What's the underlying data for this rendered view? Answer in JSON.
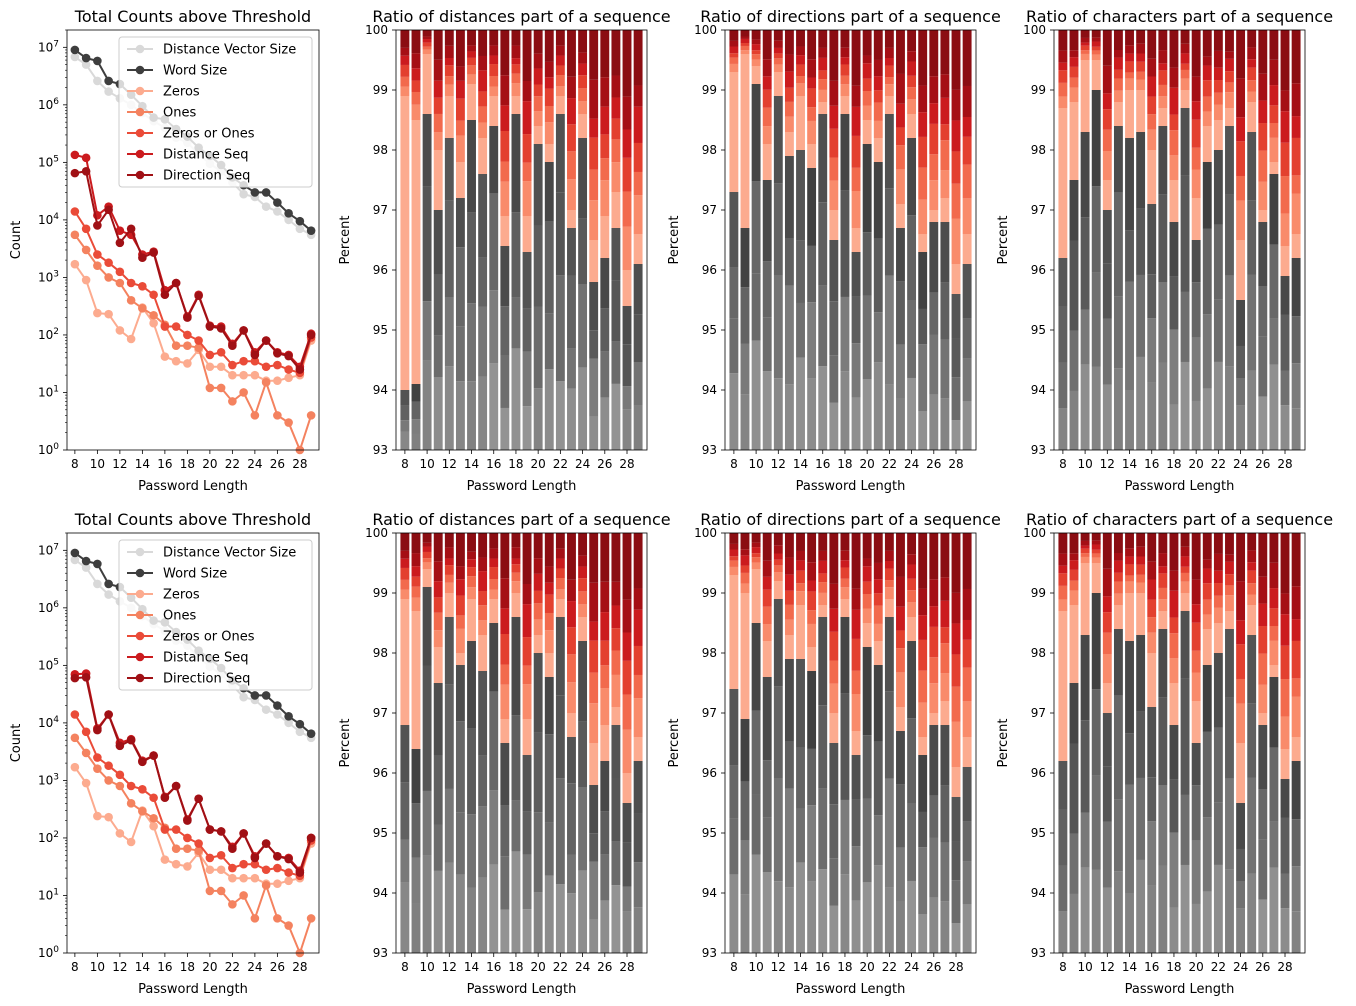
{
  "chart_data": [
    {
      "type": "line",
      "title": "Total Counts above Threshold",
      "xlabel": "Password Length",
      "ylabel": "Count",
      "yscale": "log",
      "ylim": [
        1,
        20000000
      ],
      "xlim": [
        7.3,
        29.7
      ],
      "xticks": [
        8,
        10,
        12,
        14,
        16,
        18,
        20,
        22,
        24,
        26,
        28
      ],
      "yticks": [
        {
          "v": 1,
          "base": "10",
          "exp": "0"
        },
        {
          "v": 10,
          "base": "10",
          "exp": "1"
        },
        {
          "v": 100,
          "base": "10",
          "exp": "2"
        },
        {
          "v": 1000,
          "base": "10",
          "exp": "3"
        },
        {
          "v": 10000,
          "base": "10",
          "exp": "4"
        },
        {
          "v": 100000,
          "base": "10",
          "exp": "5"
        },
        {
          "v": 1000000,
          "base": "10",
          "exp": "6"
        },
        {
          "v": 10000000,
          "base": "10",
          "exp": "7"
        }
      ],
      "legend": "top-right",
      "x": [
        8,
        9,
        10,
        11,
        12,
        13,
        14,
        15,
        16,
        17,
        18,
        19,
        20,
        21,
        22,
        23,
        24,
        25,
        26,
        27,
        28,
        29
      ],
      "series": [
        {
          "name": "Distance Vector Size",
          "color": "#d9d9d9",
          "values": [
            6800000,
            5000000,
            2600000,
            1700000,
            1300000,
            1000000,
            720000,
            520000,
            400000,
            270000,
            220000,
            140000,
            95000,
            70000,
            45000,
            28000,
            25000,
            17000,
            14000,
            10000,
            7000,
            5500
          ]
        },
        {
          "name": "Word Size",
          "color": "#3e3e3e",
          "values": [
            9000000,
            6500000,
            5800000,
            2600000,
            2300000,
            1500000,
            950000,
            600000,
            560000,
            380000,
            280000,
            180000,
            130000,
            90000,
            55000,
            40000,
            30000,
            30000,
            20000,
            13000,
            9500,
            6500
          ]
        },
        {
          "name": "Zeros",
          "color": "#fcab8f",
          "values": [
            1700,
            900,
            240,
            230,
            120,
            85,
            300,
            160,
            42,
            35,
            32,
            55,
            28,
            28,
            20,
            20,
            20,
            16,
            16,
            18,
            20,
            80
          ]
        },
        {
          "name": "Ones",
          "color": "#f4825f",
          "values": [
            5500,
            3000,
            1600,
            1000,
            800,
            400,
            290,
            220,
            150,
            65,
            65,
            60,
            12,
            12,
            7,
            10,
            4,
            15,
            4,
            3,
            1,
            4
          ]
        },
        {
          "name": "Zeros or Ones",
          "color": "#ea4b38",
          "values": [
            14000,
            7000,
            2500,
            1800,
            1250,
            800,
            700,
            500,
            140,
            140,
            100,
            80,
            45,
            50,
            30,
            35,
            35,
            28,
            30,
            25,
            22,
            90
          ]
        }
      ],
      "variants": [
        {
          "distance_seq": {
            "name": "Distance Seq",
            "color": "#cb1b1e",
            "values": [
              135000,
              120000,
              12000,
              17000,
              6500,
              5500,
              2500,
              2800,
              600,
              800,
              210,
              500,
              145,
              140,
              70,
              120,
              50,
              80,
              50,
              45,
              28,
              105
            ]
          },
          "direction_seq": {
            "name": "Direction Seq",
            "color": "#a01015",
            "values": [
              65000,
              70000,
              8000,
              15000,
              4000,
              7000,
              2200,
              2700,
              500,
              800,
              200,
              480,
              140,
              130,
              65,
              120,
              45,
              80,
              48,
              43,
              25,
              100
            ]
          }
        },
        {
          "distance_seq": {
            "name": "Distance Seq",
            "color": "#cb1b1e",
            "values": [
              70000,
              72000,
              8000,
              14000,
              4500,
              5200,
              2200,
              2700,
              520,
              800,
              210,
              480,
              140,
              130,
              70,
              120,
              48,
              80,
              48,
              45,
              27,
              100
            ]
          },
          "direction_seq": {
            "name": "Direction Seq",
            "color": "#a01015",
            "values": [
              60000,
              62000,
              7500,
              14000,
              4000,
              5000,
              2100,
              2700,
              500,
              800,
              200,
              480,
              140,
              130,
              65,
              120,
              45,
              80,
              48,
              43,
              25,
              100
            ]
          }
        }
      ]
    },
    {
      "type": "bar",
      "title": "Ratio of distances part of a sequence",
      "xlabel": "Password Length",
      "ylabel": "Percent",
      "ylim": [
        93,
        100
      ],
      "yticks": [
        93,
        94,
        95,
        96,
        97,
        98,
        99,
        100
      ],
      "xticks": [
        8,
        10,
        12,
        14,
        16,
        18,
        20,
        22,
        24,
        26,
        28
      ],
      "stacked": true,
      "categories": [
        8,
        9,
        10,
        11,
        12,
        13,
        14,
        15,
        16,
        17,
        18,
        19,
        20,
        21,
        22,
        23,
        24,
        25,
        26,
        27,
        28,
        29
      ],
      "gray_top": {
        "top_row": [
          94.0,
          94.1,
          98.6,
          97.0,
          98.2,
          97.2,
          98.5,
          97.6,
          98.4,
          96.4,
          98.6,
          96.3,
          98.1,
          97.8,
          98.6,
          96.7,
          98.2,
          95.8,
          96.2,
          96.7,
          95.4,
          96.1
        ],
        "bottom_row": [
          96.8,
          96.4,
          99.1,
          97.5,
          98.6,
          97.8,
          98.2,
          97.7,
          98.5,
          96.5,
          98.6,
          96.3,
          98.0,
          97.6,
          98.6,
          96.6,
          98.2,
          95.8,
          96.2,
          96.8,
          95.5,
          96.2
        ]
      },
      "peach_top": {
        "top_row": [
          98.9,
          98.5,
          99.6,
          98.0,
          98.9,
          97.8,
          99.1,
          98.2,
          98.9,
          96.9,
          98.9,
          96.9,
          98.4,
          98.1,
          98.9,
          97.0,
          98.6,
          96.5,
          96.9,
          97.3,
          96.0,
          96.6
        ],
        "bottom_row": [
          98.9,
          98.7,
          99.4,
          98.1,
          99.0,
          98.0,
          98.9,
          98.3,
          98.9,
          96.9,
          99.0,
          96.9,
          98.3,
          98.0,
          98.9,
          97.0,
          98.6,
          96.5,
          96.8,
          97.1,
          96.0,
          96.6
        ]
      }
    },
    {
      "type": "bar",
      "title": "Ratio of directions part of a sequence",
      "xlabel": "Password Length",
      "ylabel": "Percent",
      "ylim": [
        93,
        100
      ],
      "yticks": [
        93,
        94,
        95,
        96,
        97,
        98,
        99,
        100
      ],
      "xticks": [
        8,
        10,
        12,
        14,
        16,
        18,
        20,
        22,
        24,
        26,
        28
      ],
      "stacked": true,
      "categories": [
        8,
        9,
        10,
        11,
        12,
        13,
        14,
        15,
        16,
        17,
        18,
        19,
        20,
        21,
        22,
        23,
        24,
        25,
        26,
        27,
        28,
        29
      ],
      "gray_top": {
        "top_row": [
          97.3,
          96.7,
          99.1,
          97.5,
          98.9,
          97.9,
          98.0,
          97.7,
          98.6,
          96.5,
          98.6,
          96.3,
          98.1,
          97.8,
          98.6,
          96.7,
          98.2,
          96.3,
          96.8,
          96.8,
          95.6,
          96.1
        ],
        "bottom_row": [
          97.4,
          96.9,
          98.5,
          97.6,
          98.9,
          97.9,
          97.9,
          97.7,
          98.6,
          96.5,
          98.6,
          96.3,
          98.1,
          97.8,
          98.6,
          96.7,
          98.2,
          96.3,
          96.8,
          96.8,
          95.6,
          96.1
        ]
      },
      "peach_top": {
        "top_row": [
          99.3,
          99.6,
          99.4,
          98.1,
          99.3,
          98.3,
          98.9,
          98.1,
          98.8,
          97.0,
          98.9,
          96.7,
          98.5,
          98.2,
          98.9,
          97.1,
          98.6,
          96.6,
          97.0,
          97.2,
          96.1,
          96.6
        ],
        "bottom_row": [
          99.3,
          99.0,
          99.4,
          98.2,
          99.2,
          98.3,
          98.8,
          98.1,
          98.8,
          97.0,
          98.9,
          96.7,
          98.5,
          98.2,
          98.9,
          97.1,
          98.6,
          96.6,
          97.0,
          97.2,
          96.1,
          96.6
        ]
      }
    },
    {
      "type": "bar",
      "title": "Ratio of characters part of a sequence",
      "xlabel": "Password Length",
      "ylabel": "Percent",
      "ylim": [
        93,
        100
      ],
      "yticks": [
        93,
        94,
        95,
        96,
        97,
        98,
        99,
        100
      ],
      "xticks": [
        8,
        10,
        12,
        14,
        16,
        18,
        20,
        22,
        24,
        26,
        28
      ],
      "stacked": true,
      "categories": [
        8,
        9,
        10,
        11,
        12,
        13,
        14,
        15,
        16,
        17,
        18,
        19,
        20,
        21,
        22,
        23,
        24,
        25,
        26,
        27,
        28,
        29
      ],
      "gray_top": {
        "top_row": [
          96.2,
          97.5,
          98.3,
          99.0,
          97.0,
          98.4,
          98.2,
          98.3,
          97.1,
          98.4,
          96.8,
          98.7,
          96.5,
          97.8,
          98.0,
          98.4,
          95.5,
          98.3,
          96.8,
          97.6,
          95.9,
          96.2
        ],
        "bottom_row": [
          96.2,
          97.5,
          98.3,
          99.0,
          97.0,
          98.4,
          98.2,
          98.3,
          97.1,
          98.4,
          96.8,
          98.7,
          96.5,
          97.8,
          98.0,
          98.4,
          95.5,
          98.3,
          96.8,
          97.6,
          95.9,
          96.2
        ]
      },
      "peach_top": {
        "top_row": [
          98.7,
          98.8,
          99.5,
          99.5,
          97.5,
          98.8,
          99.0,
          99.0,
          98.0,
          98.7,
          97.5,
          99.0,
          97.2,
          98.4,
          98.5,
          98.7,
          96.5,
          98.8,
          97.0,
          97.8,
          96.4,
          96.6
        ],
        "bottom_row": [
          98.7,
          98.8,
          99.5,
          99.5,
          97.5,
          98.8,
          99.0,
          99.0,
          98.0,
          98.7,
          97.5,
          99.0,
          97.2,
          98.4,
          98.5,
          98.7,
          96.5,
          98.8,
          97.0,
          97.8,
          96.4,
          96.6
        ]
      }
    }
  ]
}
